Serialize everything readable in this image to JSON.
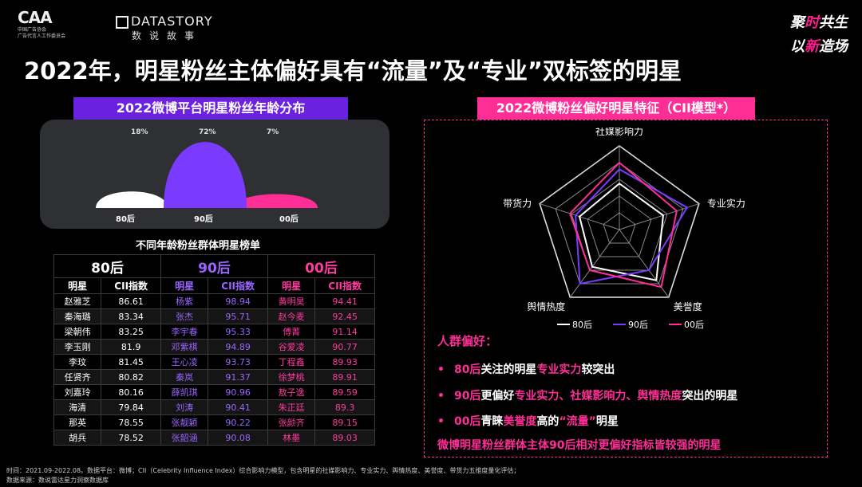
{
  "header": {
    "cia_logo": "CAA",
    "cia_sub1": "中国广告协会",
    "cia_sub2": "广告代言人工作委员会",
    "ds_logo": "DATASTORY",
    "ds_cn": "数说故事",
    "event_line1a": "聚",
    "event_line1b": "时",
    "event_line1c": "共生",
    "event_line2a": "以",
    "event_line2b": "新",
    "event_line2c": "造场"
  },
  "title": "2022年，明星粉丝主体偏好具有“流量”及“专业”双标签的明星",
  "age_section": {
    "header": "2022微博平台明星粉丝年龄分布",
    "groups": [
      {
        "label": "80后",
        "pct": "18%"
      },
      {
        "label": "90后",
        "pct": "72%"
      },
      {
        "label": "00后",
        "pct": "7%"
      }
    ]
  },
  "rank_section": {
    "title": "不同年龄粉丝群体明星榜单",
    "groups": [
      "80后",
      "90后",
      "00后"
    ],
    "col_star": "明星",
    "col_cii": "CII指数",
    "rows": [
      [
        "赵雅芝",
        "86.61",
        "杨紫",
        "98.94",
        "黄明昊",
        "94.41"
      ],
      [
        "秦海璐",
        "83.34",
        "张杰",
        "95.71",
        "赵今麦",
        "92.45"
      ],
      [
        "梁朝伟",
        "83.25",
        "李宇春",
        "95.33",
        "傅菁",
        "91.14"
      ],
      [
        "李玉刚",
        "81.9",
        "邓紫棋",
        "94.89",
        "谷爱凌",
        "90.77"
      ],
      [
        "李玟",
        "81.45",
        "王心凌",
        "93.73",
        "丁程鑫",
        "89.93"
      ],
      [
        "任贤齐",
        "80.82",
        "秦岚",
        "91.37",
        "徐梦桃",
        "89.91"
      ],
      [
        "刘嘉玲",
        "80.16",
        "薛凯琪",
        "90.96",
        "敖子逸",
        "89.59"
      ],
      [
        "海清",
        "79.84",
        "刘涛",
        "90.41",
        "朱正廷",
        "89.3"
      ],
      [
        "那英",
        "78.55",
        "张靓颖",
        "90.22",
        "张颜齐",
        "89.15"
      ],
      [
        "胡兵",
        "78.52",
        "张韶涵",
        "90.08",
        "林墨",
        "89.03"
      ]
    ]
  },
  "radar_section": {
    "header": "2022微博粉丝偏好明星特征（CII模型*）"
  },
  "chart_data": [
    {
      "type": "area",
      "categories": [
        "80后",
        "90后",
        "00后"
      ],
      "values": [
        18,
        72,
        7
      ],
      "value_labels": [
        "18%",
        "72%",
        "7%"
      ],
      "colors": [
        "#ffffff",
        "#7b3bff",
        "#ff2e97"
      ]
    },
    {
      "type": "radar",
      "axes": [
        "社媒影响力",
        "专业实力",
        "美誉度",
        "舆情热度",
        "带货力"
      ],
      "range": [
        0,
        1
      ],
      "series": [
        {
          "name": "80后",
          "color": "#ffffff",
          "values": [
            0.55,
            0.55,
            0.75,
            0.55,
            0.5
          ]
        },
        {
          "name": "90后",
          "color": "#7b3bff",
          "values": [
            0.72,
            0.85,
            0.6,
            0.8,
            0.55
          ]
        },
        {
          "name": "00后",
          "color": "#ff2e97",
          "values": [
            0.8,
            0.72,
            0.85,
            0.6,
            0.62
          ]
        }
      ]
    }
  ],
  "preferences": {
    "title": "人群偏好：",
    "item1": {
      "a": "80后",
      "b": "关注的明星",
      "c": "专业实力",
      "d": "较突出"
    },
    "item2": {
      "a": "90后",
      "b": "更偏好",
      "c": "专业实力、社媒影响力、舆情热度",
      "d": "突出的明星"
    },
    "item3": {
      "a": "00后",
      "b": "青睐",
      "c": "美誉度",
      "d": "高的",
      "e": "“流量”",
      "f": "明星"
    },
    "summary": "微博明星粉丝群体主体90后相对更偏好指标皆较强的明星"
  },
  "footnote": {
    "line1": "时间：2021.09-2022.08。数据平台：微博；CII（Celebrity Influence Index）综合影响力模型，包含明星的社媒影响力、专业实力、舆情热度、美誉度、带货力五维度量化评估；",
    "line2": "数据来源：数说雷达星力洞察数据库"
  }
}
